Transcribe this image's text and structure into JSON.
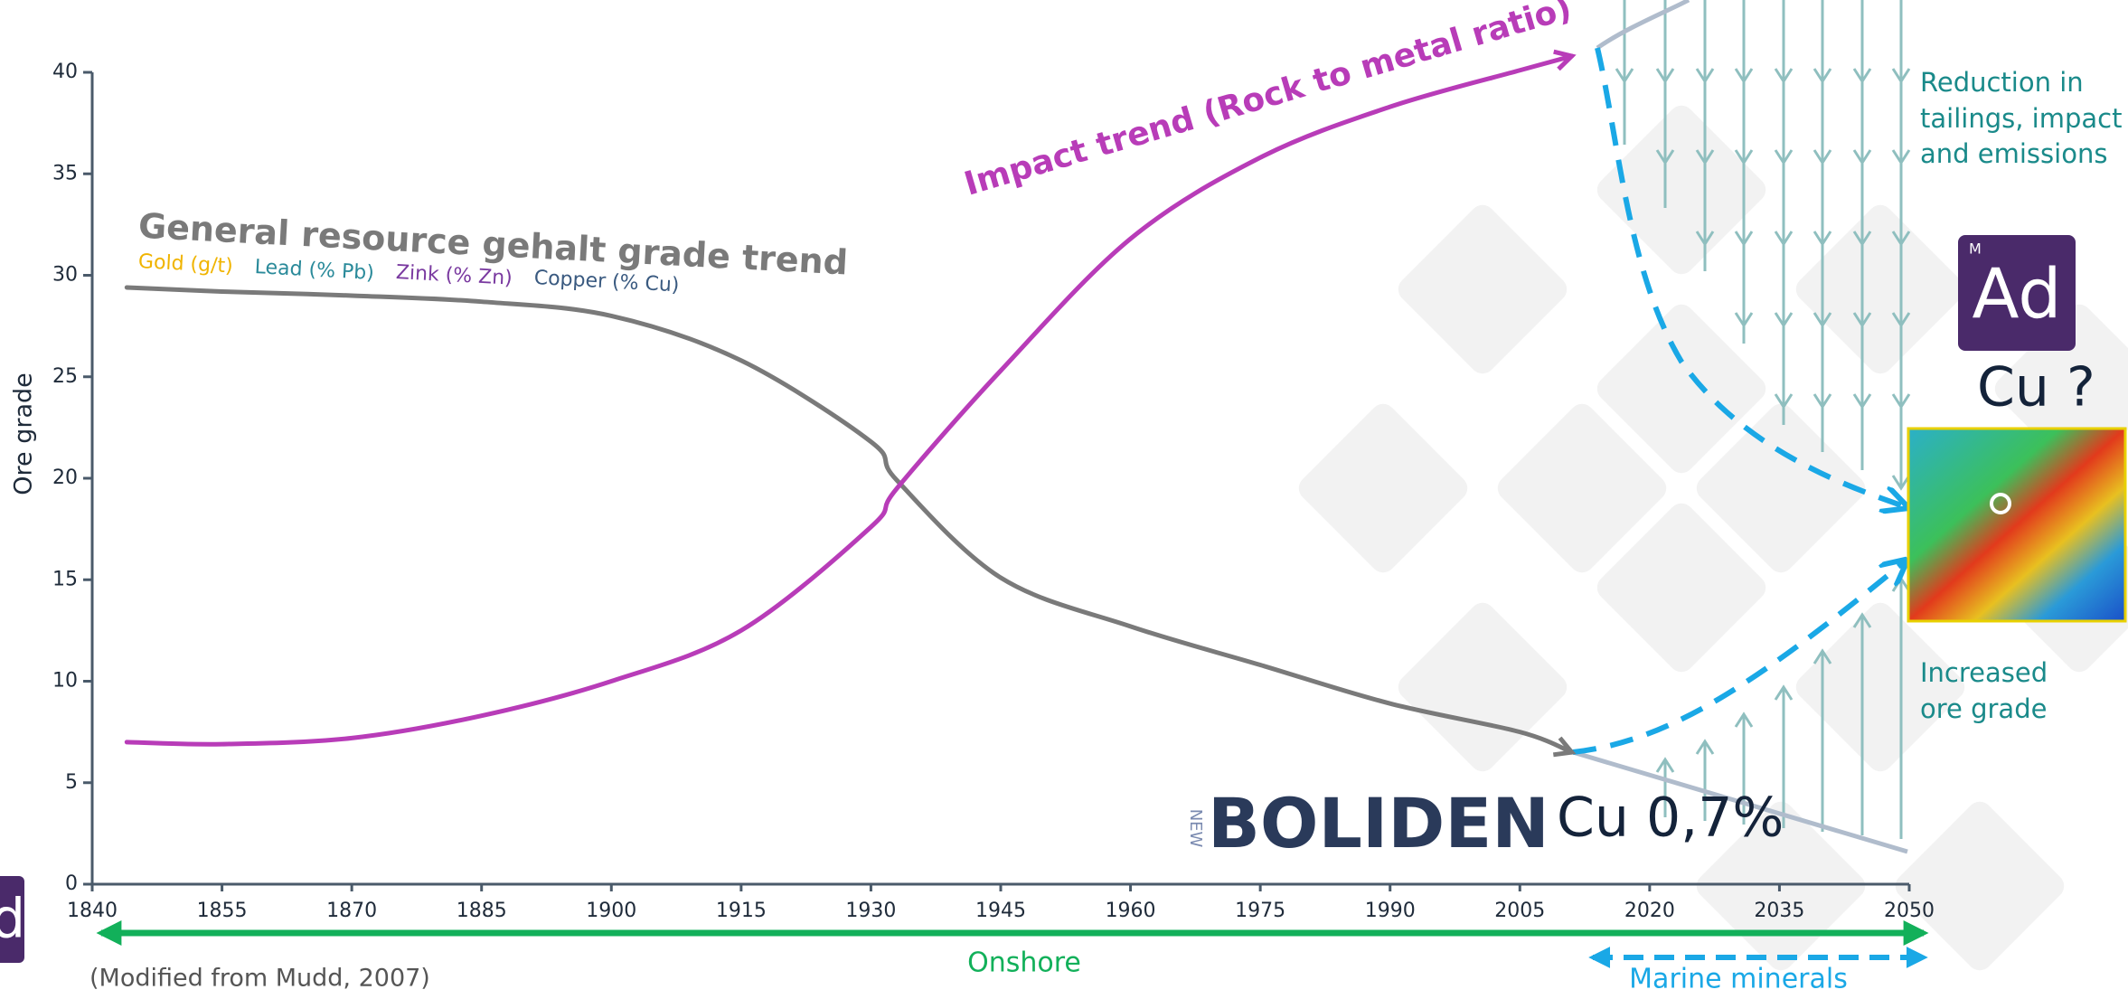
{
  "chart_data": {
    "type": "line",
    "title": "General resource gehalt grade trend",
    "ylabel": "Ore grade",
    "x": [
      1844,
      1855,
      1870,
      1885,
      1900,
      1915,
      1930,
      1933,
      1945,
      1960,
      1975,
      1990,
      2005,
      2011
    ],
    "series": [
      {
        "name": "General resource gehalt grade trend",
        "color": "#7a7a7a",
        "values": [
          29.4,
          29.2,
          29.0,
          28.7,
          28.0,
          25.8,
          21.8,
          19.9,
          15.1,
          12.7,
          10.8,
          8.9,
          7.5,
          6.5
        ]
      },
      {
        "name": "Impact trend (Rock to metal ratio)",
        "color": "#b83cb8",
        "values": [
          7.0,
          6.9,
          7.2,
          8.3,
          10.0,
          12.5,
          17.6,
          19.5,
          25.3,
          31.8,
          35.8,
          38.3,
          40.1,
          40.8
        ]
      }
    ],
    "xlim": [
      1840,
      2050
    ],
    "xticks": [
      1840,
      1855,
      1870,
      1885,
      1900,
      1915,
      1930,
      1945,
      1960,
      1975,
      1990,
      2005,
      2020,
      2035,
      2050
    ],
    "ylim": [
      0,
      40
    ],
    "yticks": [
      0,
      5,
      10,
      15,
      20,
      25,
      30,
      35,
      40
    ],
    "grid": false,
    "legend_labels": [
      {
        "text": "Gold (g/t)",
        "color": "#f0b400"
      },
      {
        "text": "Lead (% Pb)",
        "color": "#2a8a9a"
      },
      {
        "text": "Zink (% Zn)",
        "color": "#7a3aa0"
      },
      {
        "text": "Copper (% Cu)",
        "color": "#3a5a80"
      }
    ],
    "annotations": {
      "reduction": [
        "Reduction in",
        "tailings, impact",
        "and emissions"
      ],
      "increased": [
        "Increased",
        "ore grade"
      ],
      "cu_unknown": "Cu ?",
      "cu_current": "Cu 0,7%",
      "onshore": "Onshore",
      "marine": "Marine minerals",
      "source": "(Modified from Mudd, 2007)",
      "boliden": "BOLIDEN",
      "boliden_new": "NEW",
      "ad": "Ad",
      "ad_m": "M",
      "ad_edge": "d"
    }
  }
}
